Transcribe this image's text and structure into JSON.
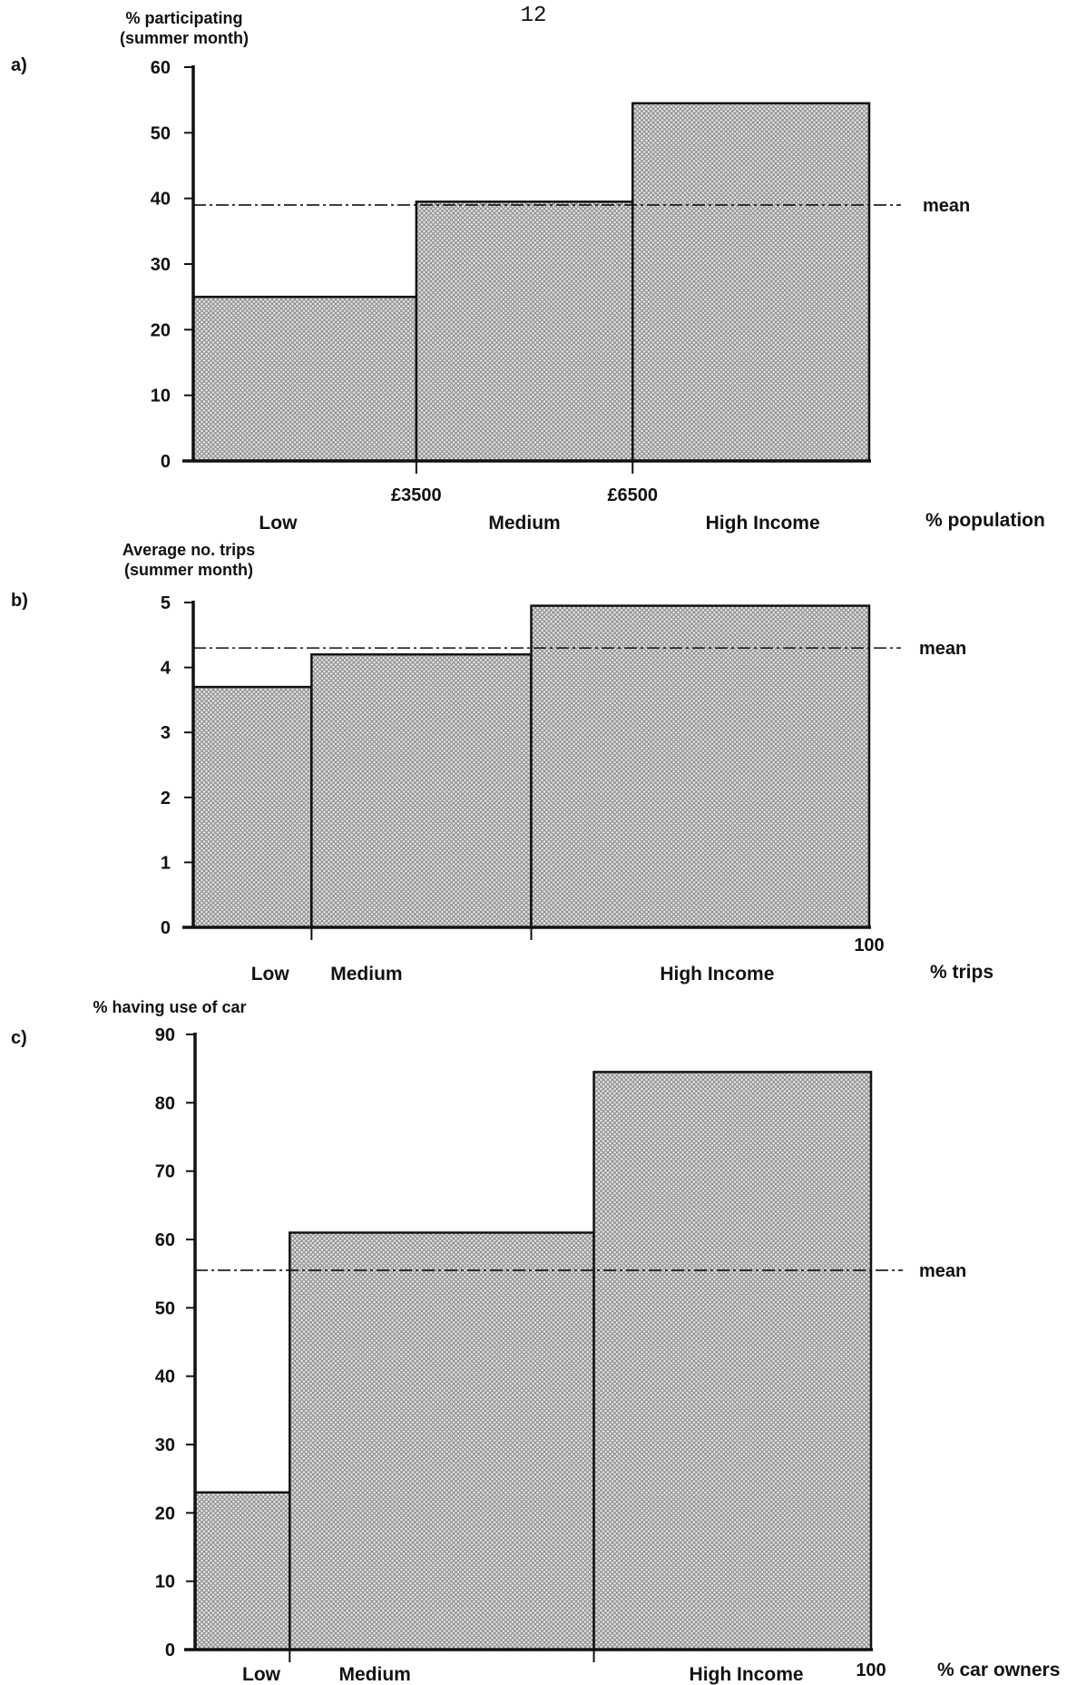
{
  "page_number": "12",
  "chart_data": [
    {
      "type": "bar",
      "panel_label": "a)",
      "ylabel_lines": [
        "% participating",
        "(summer month)"
      ],
      "ylim": [
        0,
        60
      ],
      "yticks": [
        0,
        10,
        20,
        30,
        40,
        50,
        60
      ],
      "x_axis_label": "% population",
      "x_max_label": "",
      "boundary_labels": [
        "£3500",
        "£6500"
      ],
      "categories": [
        "Low",
        "Medium",
        "High Income"
      ],
      "widths": [
        33,
        32,
        35
      ],
      "values": [
        25,
        39.5,
        54.5
      ],
      "mean": 39,
      "mean_label": "mean"
    },
    {
      "type": "bar",
      "panel_label": "b)",
      "ylabel_lines": [
        "Average no. trips",
        "(summer month)"
      ],
      "ylim": [
        0,
        5
      ],
      "yticks": [
        0,
        1,
        2,
        3,
        4,
        5
      ],
      "x_axis_label": "% trips",
      "x_max_label": "100",
      "boundary_labels": [],
      "categories": [
        "Low",
        "Medium",
        "High Income"
      ],
      "widths": [
        17.5,
        32.5,
        50
      ],
      "values": [
        3.7,
        4.2,
        4.95
      ],
      "mean": 4.3,
      "mean_label": "mean"
    },
    {
      "type": "bar",
      "panel_label": "c)",
      "ylabel_lines": [
        "% having use of car"
      ],
      "ylim": [
        0,
        90
      ],
      "yticks": [
        0,
        10,
        20,
        30,
        40,
        50,
        60,
        70,
        80,
        90
      ],
      "x_axis_label": "% car owners",
      "x_max_label": "100",
      "boundary_labels": [],
      "categories": [
        "Low",
        "Medium",
        "High Income"
      ],
      "widths": [
        14,
        45,
        41
      ],
      "values": [
        23,
        61,
        84.5
      ],
      "mean": 55.5,
      "mean_label": "mean"
    }
  ]
}
